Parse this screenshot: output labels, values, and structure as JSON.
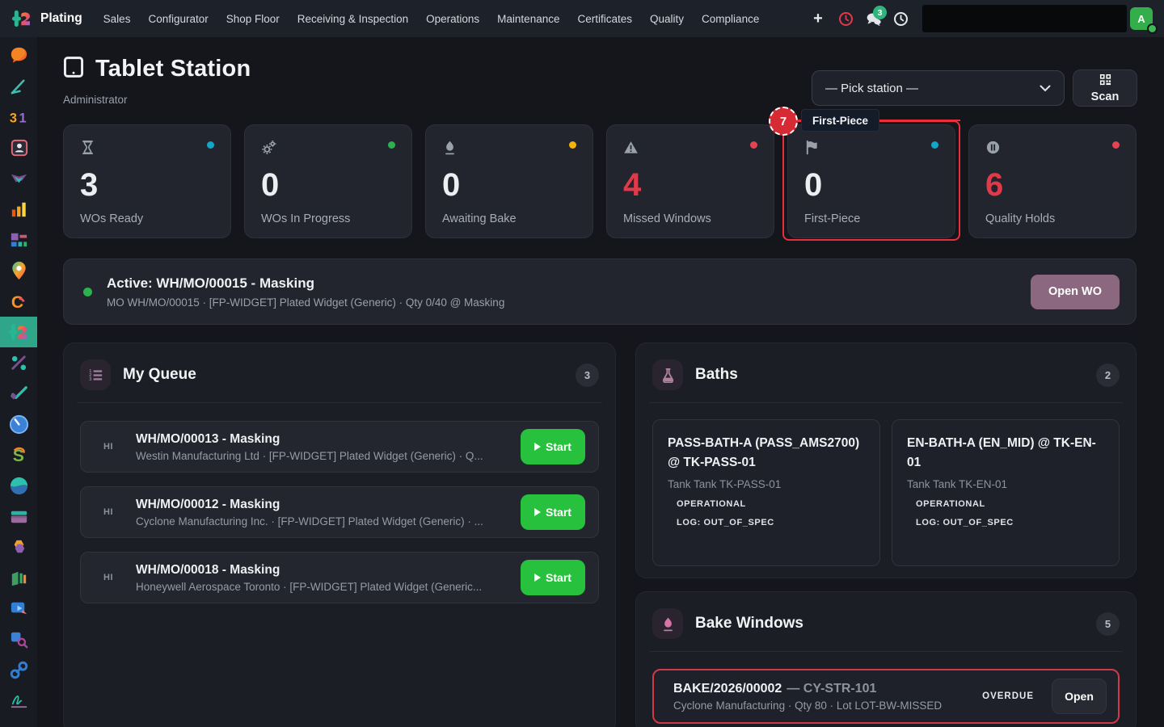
{
  "navbar": {
    "brand": "Plating",
    "menus": [
      "Sales",
      "Configurator",
      "Shop Floor",
      "Receiving & Inspection",
      "Operations",
      "Maintenance",
      "Certificates",
      "Quality",
      "Compliance"
    ],
    "plus_label": "+",
    "chat_badge": "3",
    "icons": [
      "plus-icon",
      "activity-clock-icon",
      "chat-bubbles-icon",
      "history-clock-icon"
    ],
    "search_value": "",
    "avatar_letter": "A"
  },
  "sidebar": {
    "apps": [
      {
        "icon": "discuss"
      },
      {
        "icon": "knowledge"
      },
      {
        "icon": "calendar-31"
      },
      {
        "icon": "contacts"
      },
      {
        "icon": "members"
      },
      {
        "icon": "graphs"
      },
      {
        "icon": "kanban-blocks"
      },
      {
        "icon": "map-pin"
      },
      {
        "icon": "crm-c"
      },
      {
        "icon": "plating",
        "active": true
      },
      {
        "icon": "percent"
      },
      {
        "icon": "todo-check"
      },
      {
        "icon": "clock-app"
      },
      {
        "icon": "sales-s"
      },
      {
        "icon": "sphere"
      },
      {
        "icon": "stacked-cards"
      },
      {
        "icon": "hexagon"
      },
      {
        "icon": "ledger-bars"
      },
      {
        "icon": "presentation"
      },
      {
        "icon": "square-search"
      },
      {
        "icon": "chain-links"
      },
      {
        "icon": "signature"
      },
      {
        "icon": "dot-partial"
      }
    ]
  },
  "header": {
    "title": "Tablet Station",
    "subtitle": "Administrator",
    "station_picker_value": "— Pick station —",
    "scan_label": "Scan"
  },
  "stats": [
    {
      "value": "3",
      "label": "WOs Ready",
      "icon": "hourglass",
      "dot_color": "#12a7c7",
      "value_color": "#eceef1"
    },
    {
      "value": "0",
      "label": "WOs In Progress",
      "icon": "gears",
      "dot_color": "#2cb14e",
      "value_color": "#eceef1"
    },
    {
      "value": "0",
      "label": "Awaiting Bake",
      "icon": "flame",
      "dot_color": "#f2b30d",
      "value_color": "#eceef1"
    },
    {
      "value": "4",
      "label": "Missed Windows",
      "icon": "warning-triangle",
      "dot_color": "#e44452",
      "value_color": "#e0394a"
    },
    {
      "value": "0",
      "label": "First-Piece",
      "icon": "flag",
      "dot_color": "#12a7c7",
      "value_color": "#eceef1",
      "highlighted": true
    },
    {
      "value": "6",
      "label": "Quality Holds",
      "icon": "pause-circle",
      "dot_color": "#e44452",
      "value_color": "#e0394a"
    }
  ],
  "annotation": {
    "number": "7",
    "label": "First-Piece",
    "color": "#e8303d"
  },
  "active_banner": {
    "title": "Active: WH/MO/00015 - Masking",
    "subtitle": "MO WH/MO/00015 · [FP-WIDGET] Plated Widget (Generic) · Qty 0/40 @ Masking",
    "button_label": "Open WO"
  },
  "queue": {
    "title": "My Queue",
    "count": "3",
    "items": [
      {
        "priority": "HI",
        "title": "WH/MO/00013 - Masking",
        "subtitle": "Westin Manufacturing Ltd · [FP-WIDGET] Plated Widget (Generic) · Q...",
        "action": "Start"
      },
      {
        "priority": "HI",
        "title": "WH/MO/00012 - Masking",
        "subtitle": "Cyclone Manufacturing Inc. · [FP-WIDGET] Plated Widget (Generic) · ...",
        "action": "Start"
      },
      {
        "priority": "HI",
        "title": "WH/MO/00018 - Masking",
        "subtitle": "Honeywell Aerospace Toronto · [FP-WIDGET] Plated Widget (Generic...",
        "action": "Start"
      }
    ]
  },
  "baths": {
    "title": "Baths",
    "count": "2",
    "cards": [
      {
        "title": "PASS-BATH-A (PASS_AMS2700) @ TK-PASS-01",
        "tank": "Tank Tank TK-PASS-01",
        "status": "OPERATIONAL",
        "log": "LOG: OUT_OF_SPEC"
      },
      {
        "title": "EN-BATH-A (EN_MID) @ TK-EN-01",
        "tank": "Tank Tank TK-EN-01",
        "status": "OPERATIONAL",
        "log": "LOG: OUT_OF_SPEC"
      }
    ]
  },
  "bake_windows": {
    "title": "Bake Windows",
    "count": "5",
    "rows": [
      {
        "ref": "BAKE/2026/00002",
        "dash": "— CY-STR-101",
        "subtitle": "Cyclone Manufacturing · Qty 80 · Lot LOT-BW-MISSED",
        "status": "OVERDUE",
        "action": "Open",
        "overdue": true
      }
    ]
  },
  "colors": {
    "accent_teal": "#2fa58a",
    "alert_red": "#e0394a",
    "success_green": "#27c13e",
    "odoo_mauve": "#8c6880",
    "cyan_dot": "#12a7c7",
    "yellow_dot": "#f2b30d"
  }
}
